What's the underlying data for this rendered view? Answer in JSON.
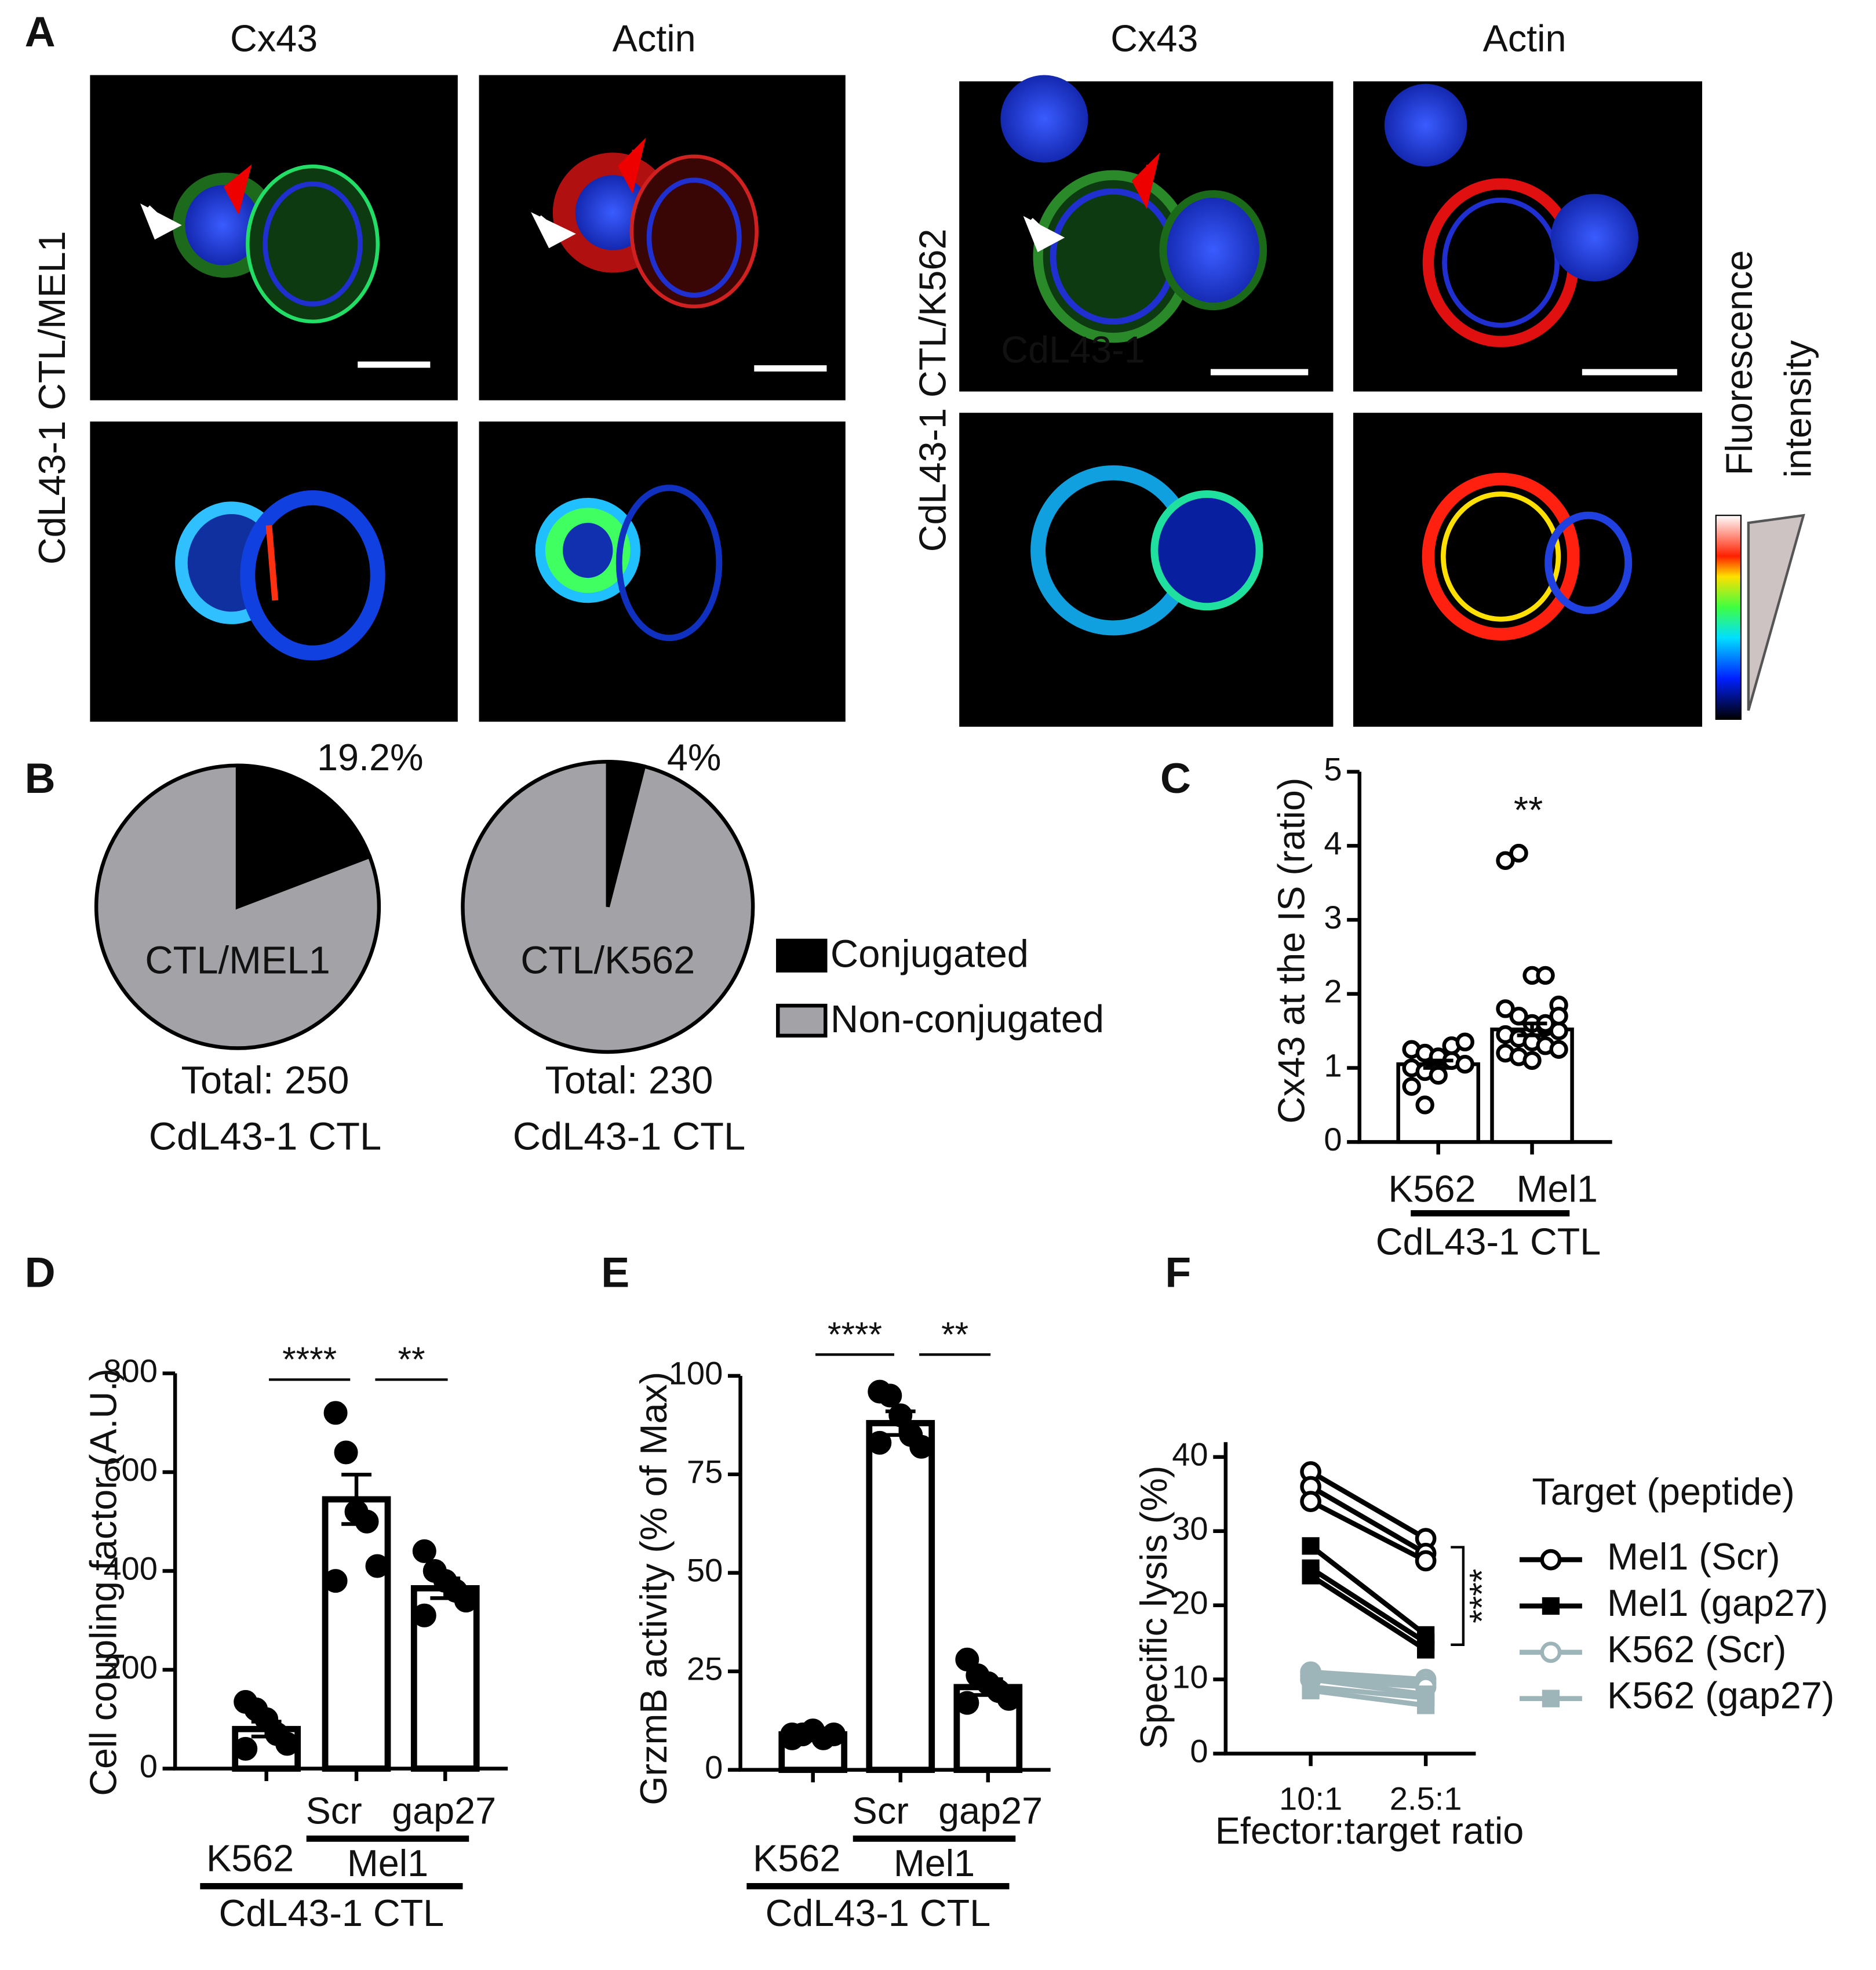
{
  "panel_a": {
    "label": "A",
    "columns": [
      "Cx43",
      "Actin",
      "Cx43",
      "Actin"
    ],
    "rows": [
      "CdL43-1 CTL/MEL1",
      "CdL43-1 CTL/K562"
    ],
    "inset": "CdL43-1",
    "colorbar_label": [
      "Fluorescence",
      "intensity"
    ]
  },
  "chart_data": [
    {
      "type": "pie",
      "label": "B",
      "categories": [
        "Conjugated",
        "Non-conjugated"
      ],
      "colors": [
        "#000000",
        "#a3a2a7"
      ],
      "pies": [
        {
          "center_label": "CTL/MEL1",
          "values": [
            19.2,
            80.8
          ],
          "value_labels": [
            "19.2%",
            null
          ],
          "footer": [
            "Total: 250",
            "CdL43-1 CTL"
          ]
        },
        {
          "center_label": "CTL/K562",
          "values": [
            4,
            96
          ],
          "value_labels": [
            "4%",
            null
          ],
          "footer": [
            "Total: 230",
            "CdL43-1 CTL"
          ]
        }
      ],
      "legend": true
    },
    {
      "type": "bar",
      "label": "C",
      "ylabel": "Cx43 at the IS (ratio)",
      "categories": [
        "K562",
        "Mel1"
      ],
      "values": [
        1.05,
        1.52
      ],
      "errors": [
        0.05,
        0.08
      ],
      "points": [
        [
          1.25,
          1.2,
          1.15,
          1.1,
          1.05,
          1.0,
          0.95,
          0.9,
          1.3,
          1.35,
          0.75,
          0.5
        ],
        [
          3.8,
          3.9,
          2.25,
          2.25,
          1.85,
          1.8,
          1.7,
          1.6,
          1.55,
          1.5,
          1.45,
          1.4,
          1.35,
          1.3,
          1.25,
          1.2,
          1.15,
          1.1,
          1.6,
          1.7
        ]
      ],
      "point_style": "open",
      "ylim": [
        0,
        5
      ],
      "yticks": [
        0,
        1,
        2,
        3,
        4,
        5
      ],
      "groups": [
        "CdL43-1 CTL"
      ],
      "significance": [
        "**"
      ]
    },
    {
      "type": "bar",
      "label": "D",
      "ylabel": "Cell coupling factor (A.U.)",
      "categories": [
        "K562",
        "Scr",
        "gap27"
      ],
      "values": [
        80,
        545,
        365
      ],
      "errors": [
        15,
        50,
        20
      ],
      "points": [
        [
          135,
          120,
          100,
          70,
          50,
          40
        ],
        [
          720,
          640,
          520,
          500,
          410,
          380
        ],
        [
          440,
          400,
          380,
          360,
          340,
          310
        ]
      ],
      "point_style": "filled",
      "ylim": [
        0,
        800
      ],
      "yticks": [
        0,
        200,
        400,
        600,
        800
      ],
      "groups": [
        "Mel1",
        "CdL43-1 CTL"
      ],
      "significance": [
        "****",
        "**"
      ]
    },
    {
      "type": "bar",
      "label": "E",
      "ylabel": "GrzmB activity (% of Max)",
      "categories": [
        "K562",
        "Scr",
        "gap27"
      ],
      "values": [
        9,
        88,
        21
      ],
      "errors": [
        1,
        3,
        2
      ],
      "points": [
        [
          8,
          9,
          10,
          8,
          9,
          9
        ],
        [
          96,
          95,
          90,
          85,
          82,
          83
        ],
        [
          28,
          24,
          22,
          20,
          18,
          17
        ]
      ],
      "point_style": "filled",
      "ylim": [
        0,
        100
      ],
      "yticks": [
        0,
        25,
        50,
        75,
        100
      ],
      "groups": [
        "Mel1",
        "CdL43-1 CTL"
      ],
      "significance": [
        "****",
        "**"
      ]
    },
    {
      "type": "line",
      "label": "F",
      "ylabel": "Specific lysis (%)",
      "xlabel": "Efector:target ratio",
      "categories": [
        "10:1",
        "2.5:1"
      ],
      "legend_title": "Target (peptide)",
      "series": [
        {
          "name": "Mel1 (Scr)",
          "color": "#000000",
          "marker": "open-circle",
          "values": [
            [
              38,
              29
            ],
            [
              36,
              27
            ],
            [
              34,
              26
            ]
          ]
        },
        {
          "name": "Mel1 (gap27)",
          "color": "#000000",
          "marker": "filled-square",
          "values": [
            [
              28,
              16
            ],
            [
              25,
              15
            ],
            [
              24,
              14
            ]
          ]
        },
        {
          "name": "K562 (Scr)",
          "color": "#9db4b8",
          "marker": "open-circle",
          "values": [
            [
              11,
              10
            ],
            [
              10.5,
              9.5
            ],
            [
              10,
              9
            ]
          ]
        },
        {
          "name": "K562 (gap27)",
          "color": "#9db4b8",
          "marker": "filled-square",
          "values": [
            [
              10,
              8
            ],
            [
              9,
              7.5
            ],
            [
              8.5,
              6.5
            ]
          ]
        }
      ],
      "ylim": [
        0,
        42
      ],
      "yticks": [
        0,
        10,
        20,
        30,
        40
      ],
      "significance": [
        "****"
      ]
    }
  ]
}
